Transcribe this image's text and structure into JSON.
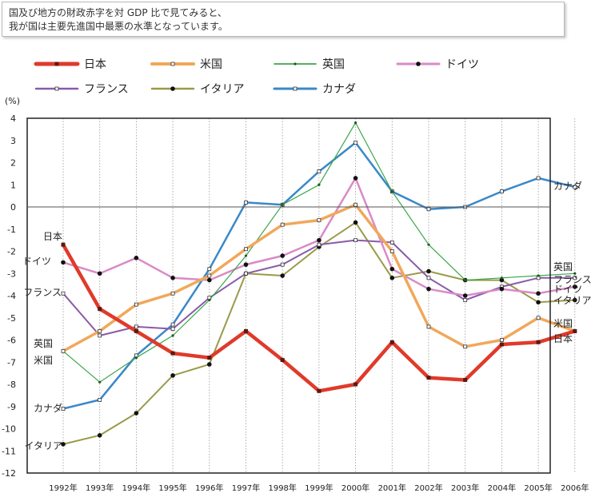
{
  "caption": {
    "line1": "国及び地方の財政赤字を対 GDP 比で見てみると、",
    "line2": "我が国は主要先進国中最悪の水準となっています。"
  },
  "chart_data": {
    "type": "line",
    "ylabel": "(%)",
    "ylim": [
      -12,
      4
    ],
    "yticks": [
      4,
      3,
      2,
      1,
      0,
      -1,
      -2,
      -3,
      -4,
      -5,
      -6,
      -7,
      -8,
      -9,
      -10,
      -11,
      -12
    ],
    "categories": [
      "1992年",
      "1993年",
      "1994年",
      "1995年",
      "1996年",
      "1997年",
      "1998年",
      "1999年",
      "2000年",
      "2001年",
      "2002年",
      "2003年",
      "2004年",
      "2005年",
      "2006年"
    ],
    "grid": "vertical-dotted",
    "legend_placement": "top",
    "series": [
      {
        "name": "日本",
        "color": "#e03a2a",
        "marker": "square",
        "width": 4.5,
        "values": [
          -1.7,
          -4.6,
          -5.6,
          -6.6,
          -6.8,
          -5.6,
          -6.9,
          -8.3,
          -8.0,
          -6.1,
          -7.7,
          -7.8,
          -6.2,
          -6.1,
          -5.6
        ],
        "start_label": "日本",
        "end_label": "日本"
      },
      {
        "name": "米国",
        "color": "#f0a85a",
        "marker": "open-square",
        "width": 3.5,
        "values": [
          -6.5,
          -5.6,
          -4.4,
          -3.9,
          -3.1,
          -1.9,
          -0.8,
          -0.6,
          0.1,
          -2.0,
          -5.4,
          -6.3,
          -6.0,
          -5.0,
          -5.6
        ],
        "start_label": "米国",
        "end_label": "米国"
      },
      {
        "name": "英国",
        "color": "#3aa64a",
        "marker": "small-dot",
        "width": 1.2,
        "values": [
          -6.5,
          -7.9,
          -6.8,
          -5.8,
          -4.2,
          -2.2,
          0.1,
          1.0,
          3.8,
          0.7,
          -1.7,
          -3.3,
          -3.2,
          -3.1,
          -3.0
        ],
        "start_label": "英国",
        "end_label": "英国"
      },
      {
        "name": "ドイツ",
        "color": "#d98ac6",
        "marker": "dot",
        "width": 2.5,
        "values": [
          -2.5,
          -3.0,
          -2.3,
          -3.2,
          -3.3,
          -2.6,
          -2.2,
          -1.5,
          1.3,
          -2.8,
          -3.7,
          -4.0,
          -3.7,
          -3.9,
          -3.6
        ],
        "start_label": "ドイツ",
        "end_label": "ドイツ"
      },
      {
        "name": "フランス",
        "color": "#8a5aa8",
        "marker": "open-square",
        "width": 2,
        "values": [
          -3.9,
          -5.8,
          -5.4,
          -5.5,
          -4.1,
          -3.0,
          -2.6,
          -1.7,
          -1.5,
          -1.6,
          -3.2,
          -4.2,
          -3.6,
          -3.2,
          -3.2
        ],
        "start_label": "フランス",
        "end_label": "フランス"
      },
      {
        "name": "イタリア",
        "color": "#9a9a4a",
        "marker": "dot",
        "width": 2,
        "values": [
          -10.7,
          -10.3,
          -9.3,
          -7.6,
          -7.1,
          -3.0,
          -3.1,
          -1.8,
          -0.7,
          -3.2,
          -2.9,
          -3.3,
          -3.3,
          -4.3,
          -4.2
        ],
        "start_label": "イタリア",
        "end_label": "イタリア"
      },
      {
        "name": "カナダ",
        "color": "#3a88c8",
        "marker": "open-square",
        "width": 2.5,
        "values": [
          -9.1,
          -8.7,
          -6.7,
          -5.3,
          -2.8,
          0.2,
          0.1,
          1.6,
          2.9,
          0.7,
          -0.1,
          0.0,
          0.7,
          1.3,
          0.9
        ],
        "start_label": "カナダ",
        "end_label": "カナダ"
      }
    ]
  }
}
